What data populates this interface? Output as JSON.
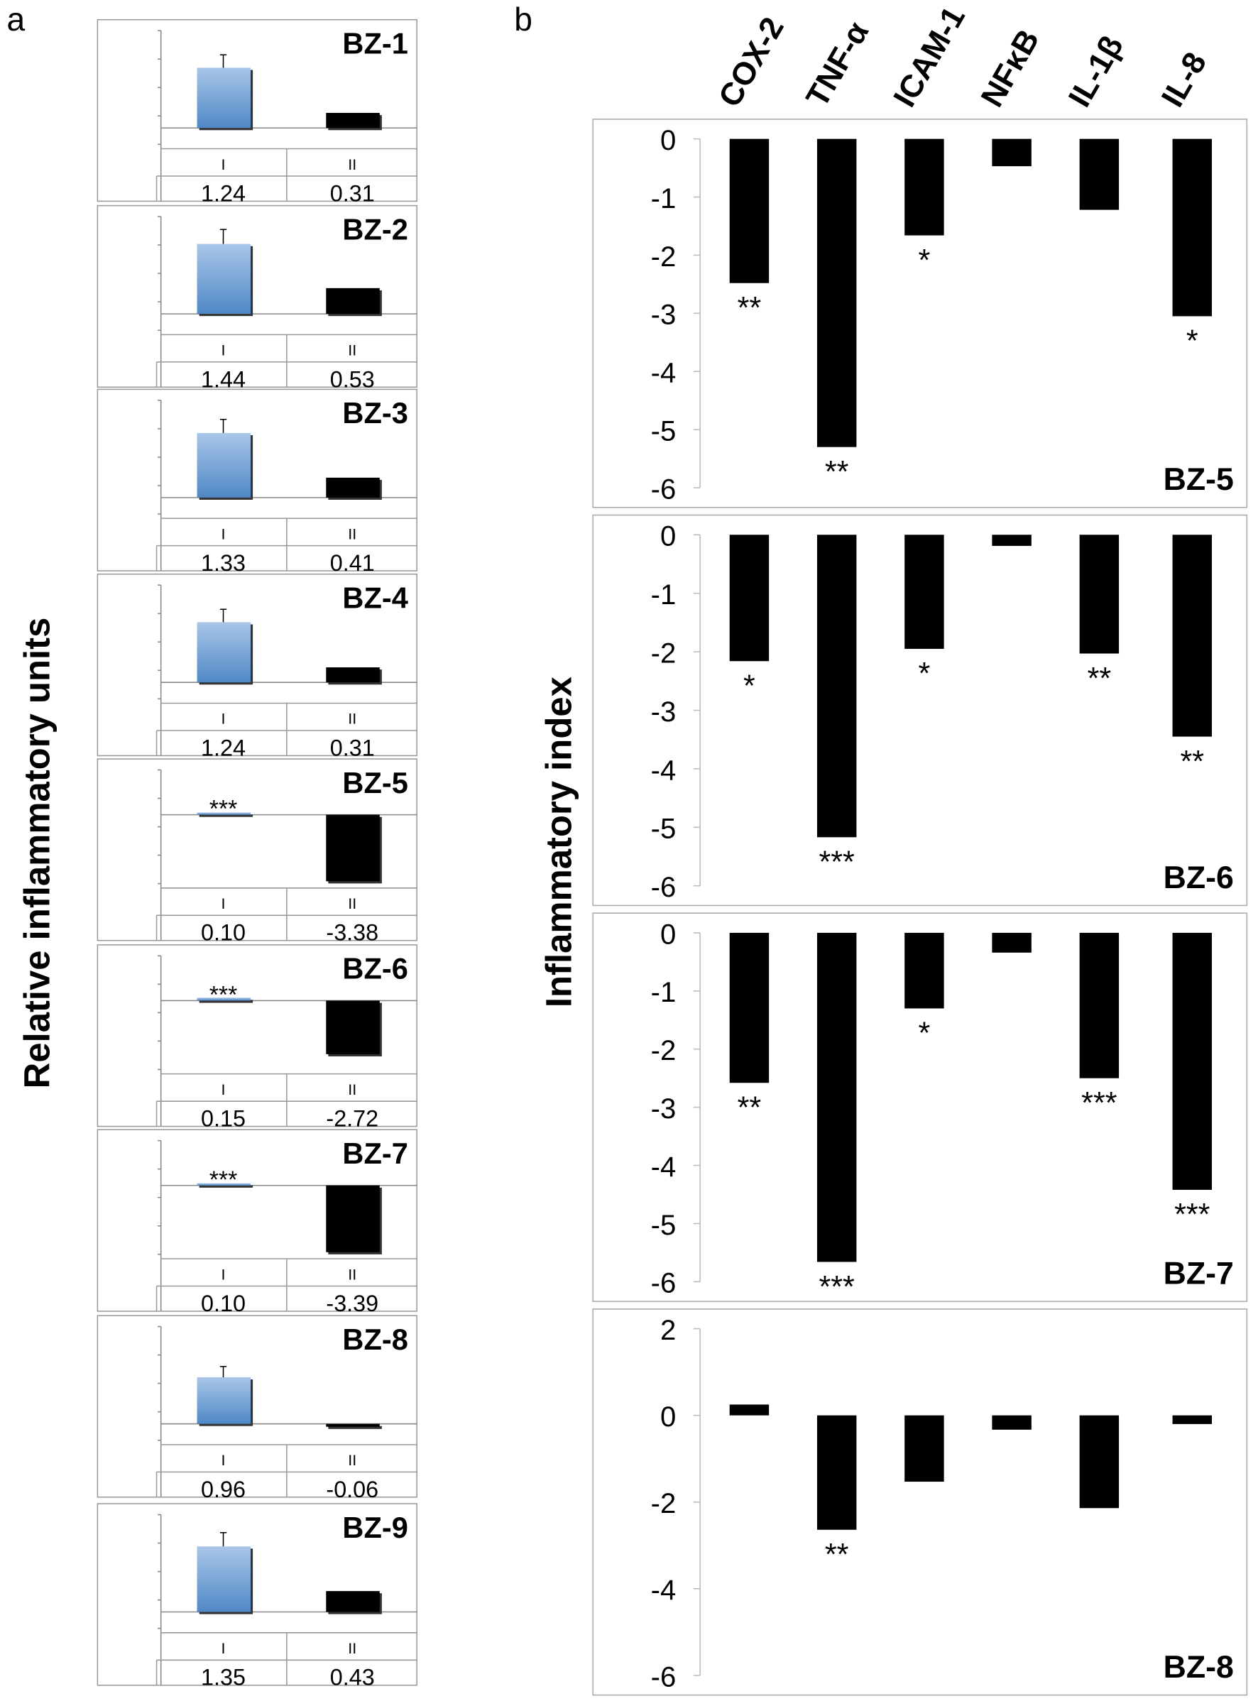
{
  "panel_labels": {
    "a": "a",
    "b": "b"
  },
  "chart_data": [
    {
      "type": "bar",
      "panel": "a",
      "ylabel": "Relative inflammatory units",
      "categories": [
        "I",
        "II"
      ],
      "panels": [
        {
          "title": "BZ-1",
          "values": [
            1.24,
            0.31
          ],
          "labels": [
            "1.24",
            "0.31"
          ],
          "sig": ""
        },
        {
          "title": "BZ-2",
          "values": [
            1.44,
            0.53
          ],
          "labels": [
            "1.44",
            "0.53"
          ],
          "sig": ""
        },
        {
          "title": "BZ-3",
          "values": [
            1.33,
            0.41
          ],
          "labels": [
            "1.33",
            "0.41"
          ],
          "sig": ""
        },
        {
          "title": "BZ-4",
          "values": [
            1.24,
            0.31
          ],
          "labels": [
            "1.24",
            "0.31"
          ],
          "sig": ""
        },
        {
          "title": "BZ-5",
          "values": [
            0.1,
            -3.38
          ],
          "labels": [
            "0.10",
            "-3.38"
          ],
          "sig": "***"
        },
        {
          "title": "BZ-6",
          "values": [
            0.15,
            -2.72
          ],
          "labels": [
            "0.15",
            "-2.72"
          ],
          "sig": "***"
        },
        {
          "title": "BZ-7",
          "values": [
            0.1,
            -3.39
          ],
          "labels": [
            "0.10",
            "-3.39"
          ],
          "sig": "***"
        },
        {
          "title": "BZ-8",
          "values": [
            0.96,
            -0.06
          ],
          "labels": [
            "0.96",
            "-0.06"
          ],
          "sig": ""
        },
        {
          "title": "BZ-9",
          "values": [
            1.35,
            0.43
          ],
          "labels": [
            "1.35",
            "0.43"
          ],
          "sig": ""
        }
      ],
      "colors": {
        "I": "#6b9bd1",
        "II": "#000000"
      }
    },
    {
      "type": "bar",
      "panel": "b",
      "ylabel": "Inflammatory index",
      "categories": [
        "COX-2",
        "TNF-α",
        "ICAM-1",
        "NFκB",
        "IL-1β",
        "IL-8"
      ],
      "panels": [
        {
          "title": "BZ-5",
          "ylim": [
            -6,
            0
          ],
          "ticks": [
            "0",
            "-1",
            "-2",
            "-3",
            "-4",
            "-5",
            "-6"
          ],
          "tick_values": [
            0,
            -1,
            -2,
            -3,
            -4,
            -5,
            -6
          ],
          "values": [
            -2.48,
            -5.3,
            -1.66,
            -0.47,
            -1.22,
            -3.05
          ],
          "sig": [
            "**",
            "**",
            "*",
            "",
            "",
            "*"
          ]
        },
        {
          "title": "BZ-6",
          "ylim": [
            -6,
            0
          ],
          "ticks": [
            "0",
            "-1",
            "-2",
            "-3",
            "-4",
            "-5",
            "-6"
          ],
          "tick_values": [
            0,
            -1,
            -2,
            -3,
            -4,
            -5,
            -6
          ],
          "values": [
            -2.16,
            -5.17,
            -1.95,
            -0.19,
            -2.03,
            -3.45
          ],
          "sig": [
            "*",
            "***",
            "*",
            "",
            "**",
            "**"
          ]
        },
        {
          "title": "BZ-7",
          "ylim": [
            -6,
            0
          ],
          "ticks": [
            "0",
            "-1",
            "-2",
            "-3",
            "-4",
            "-5",
            "-6"
          ],
          "tick_values": [
            0,
            -1,
            -2,
            -3,
            -4,
            -5,
            -6
          ],
          "values": [
            -2.58,
            -5.66,
            -1.3,
            -0.34,
            -2.5,
            -4.42
          ],
          "sig": [
            "**",
            "***",
            "*",
            "",
            "***",
            "***"
          ]
        },
        {
          "title": "BZ-8",
          "ylim": [
            -6,
            2
          ],
          "ticks": [
            "2",
            "0",
            "-2",
            "-4",
            "-6"
          ],
          "tick_values": [
            2,
            0,
            -2,
            -4,
            -6
          ],
          "values": [
            0.25,
            -2.64,
            -1.53,
            -0.33,
            -2.14,
            -0.2
          ],
          "sig": [
            "",
            "**",
            "",
            "",
            "",
            ""
          ]
        }
      ],
      "colors": {
        "bar": "#000000"
      }
    }
  ]
}
